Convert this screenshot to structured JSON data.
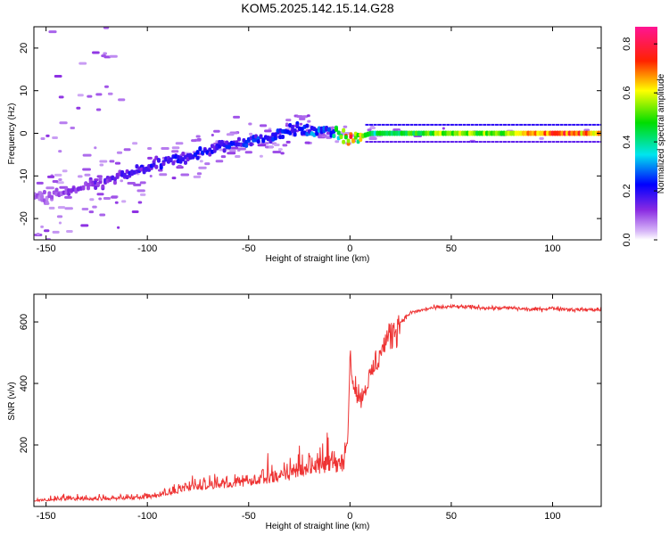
{
  "figure_title": "KOM5.2025.142.15.14.G28",
  "chart_data": [
    {
      "type": "heatmap",
      "xlabel": "Height of straight line (km)",
      "ylabel": "Frequency (Hz)",
      "xlim": [
        -156,
        124
      ],
      "ylim": [
        -25,
        25
      ],
      "xticks": [
        -150,
        -100,
        -50,
        0,
        50,
        100
      ],
      "yticks": [
        -20,
        -10,
        0,
        10,
        20
      ],
      "grid": false,
      "colorbar": {
        "label": "Normalized spectral amplitude",
        "range": [
          0.0,
          0.87
        ],
        "ticks": [
          0.0,
          0.2,
          0.4,
          0.6,
          0.8
        ],
        "colormap": "rainbow (white-violet-blue-cyan-green-yellow-red-magenta)"
      },
      "description_trend": "scattered weak energy at negative heights with a positive slope in frequency, converging to a strong continuous line near 0 Hz for heights above about 0 km",
      "ridge": {
        "x": [
          -150,
          -125,
          -100,
          -85,
          -70,
          -55,
          -40,
          -30,
          -20,
          -10,
          0,
          10,
          25,
          50,
          75,
          100,
          124
        ],
        "y": [
          -15,
          -12,
          -8,
          -6,
          -4,
          -2,
          -1,
          1,
          0.5,
          0.5,
          -1.5,
          0,
          0,
          0,
          0,
          0,
          0
        ],
        "amplitude": [
          0.1,
          0.15,
          0.2,
          0.22,
          0.22,
          0.24,
          0.26,
          0.22,
          0.3,
          0.3,
          0.8,
          0.4,
          0.45,
          0.55,
          0.5,
          0.75,
          0.6
        ]
      }
    },
    {
      "type": "line",
      "xlabel": "Height of straight line (km)",
      "ylabel": "SNR (v/v)",
      "xlim": [
        -156,
        124
      ],
      "ylim": [
        0,
        690
      ],
      "xticks": [
        -150,
        -100,
        -50,
        0,
        50,
        100
      ],
      "yticks": [
        200,
        400,
        600
      ],
      "grid": false,
      "color": "#ee3333",
      "series": [
        {
          "x": [
            -156,
            -140,
            -120,
            -100,
            -90,
            -80,
            -70,
            -60,
            -50,
            -40,
            -30,
            -20,
            -10,
            -3,
            -1,
            0,
            2,
            5,
            10,
            15,
            20,
            25,
            30,
            40,
            50,
            60,
            70,
            80,
            90,
            100,
            110,
            124
          ],
          "y": [
            15,
            20,
            20,
            25,
            35,
            50,
            55,
            60,
            65,
            75,
            85,
            100,
            110,
            110,
            250,
            480,
            400,
            350,
            420,
            500,
            560,
            600,
            630,
            645,
            650,
            648,
            645,
            645,
            640,
            645,
            640,
            640
          ]
        }
      ]
    }
  ]
}
